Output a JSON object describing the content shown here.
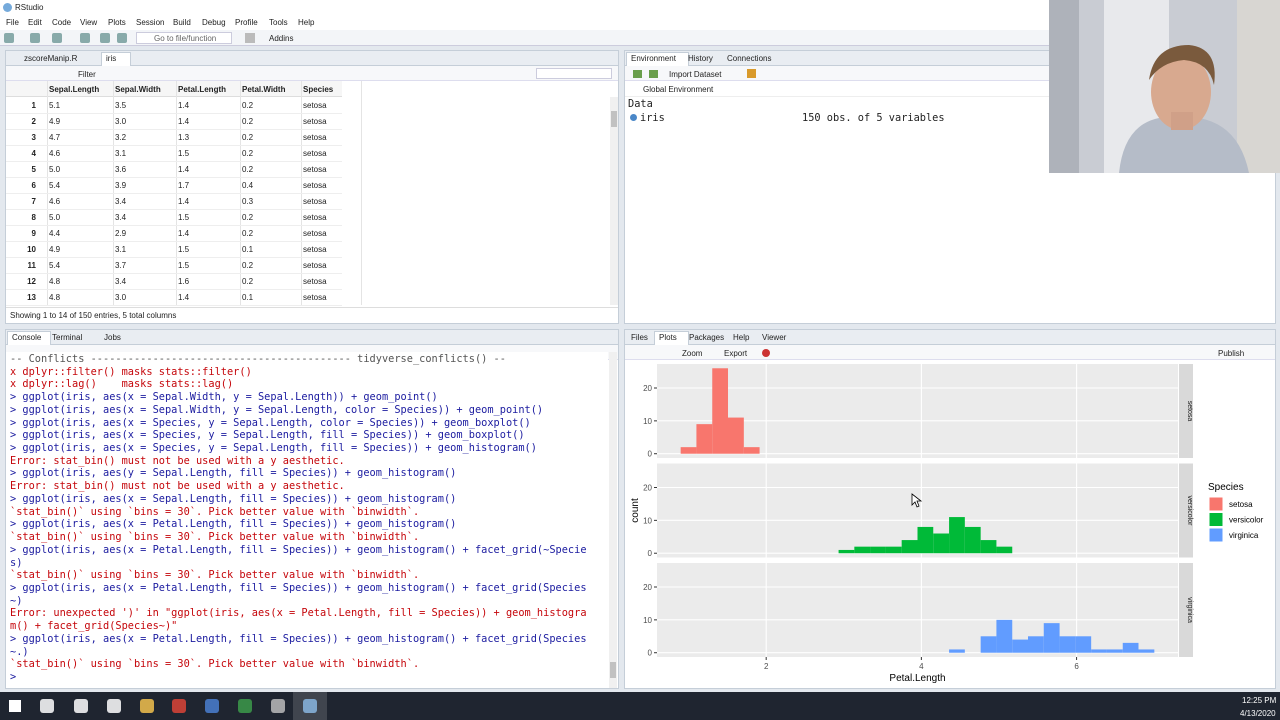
{
  "window": {
    "title": "RStudio"
  },
  "menu": [
    "File",
    "Edit",
    "Code",
    "View",
    "Plots",
    "Session",
    "Build",
    "Debug",
    "Profile",
    "Tools",
    "Help"
  ],
  "toolbar": {
    "goto": "Go to file/function",
    "addins": "Addins"
  },
  "source": {
    "tabs": [
      "zscoreManip.R",
      "iris"
    ],
    "filter": "Filter",
    "columns": [
      "Sepal.Length",
      "Sepal.Width",
      "Petal.Length",
      "Petal.Width",
      "Species"
    ],
    "rows": [
      [
        "1",
        "5.1",
        "3.5",
        "1.4",
        "0.2",
        "setosa"
      ],
      [
        "2",
        "4.9",
        "3.0",
        "1.4",
        "0.2",
        "setosa"
      ],
      [
        "3",
        "4.7",
        "3.2",
        "1.3",
        "0.2",
        "setosa"
      ],
      [
        "4",
        "4.6",
        "3.1",
        "1.5",
        "0.2",
        "setosa"
      ],
      [
        "5",
        "5.0",
        "3.6",
        "1.4",
        "0.2",
        "setosa"
      ],
      [
        "6",
        "5.4",
        "3.9",
        "1.7",
        "0.4",
        "setosa"
      ],
      [
        "7",
        "4.6",
        "3.4",
        "1.4",
        "0.3",
        "setosa"
      ],
      [
        "8",
        "5.0",
        "3.4",
        "1.5",
        "0.2",
        "setosa"
      ],
      [
        "9",
        "4.4",
        "2.9",
        "1.4",
        "0.2",
        "setosa"
      ],
      [
        "10",
        "4.9",
        "3.1",
        "1.5",
        "0.1",
        "setosa"
      ],
      [
        "11",
        "5.4",
        "3.7",
        "1.5",
        "0.2",
        "setosa"
      ],
      [
        "12",
        "4.8",
        "3.4",
        "1.6",
        "0.2",
        "setosa"
      ],
      [
        "13",
        "4.8",
        "3.0",
        "1.4",
        "0.1",
        "setosa"
      ]
    ],
    "footer": "Showing 1 to 14 of 150 entries, 5 total columns"
  },
  "environment": {
    "tabs": [
      "Environment",
      "History",
      "Connections"
    ],
    "import": "Import Dataset",
    "scope": "Global Environment",
    "section": "Data",
    "object": {
      "name": "iris",
      "summary": "150 obs. of 5 variables"
    }
  },
  "console": {
    "tabs": [
      "Console",
      "Terminal",
      "Jobs"
    ],
    "lines": [
      {
        "text": "-- Conflicts ------------------------------------------ tidyverse_conflicts() --",
        "color": "#555555"
      },
      {
        "text": "x dplyr::filter() masks stats::filter()",
        "color": "#c5060b"
      },
      {
        "text": "x dplyr::lag()    masks stats::lag()",
        "color": "#c5060b"
      },
      {
        "text": "> ggplot(iris, aes(x = Sepal.Width, y = Sepal.Length)) + geom_point()",
        "color": "#1c1ca0"
      },
      {
        "text": "> ggplot(iris, aes(x = Sepal.Width, y = Sepal.Length, color = Species)) + geom_point()",
        "color": "#1c1ca0"
      },
      {
        "text": "> ggplot(iris, aes(x = Species, y = Sepal.Length, color = Species)) + geom_boxplot()",
        "color": "#1c1ca0"
      },
      {
        "text": "> ggplot(iris, aes(x = Species, y = Sepal.Length, fill = Species)) + geom_boxplot()",
        "color": "#1c1ca0"
      },
      {
        "text": "> ggplot(iris, aes(x = Species, y = Sepal.Length, fill = Species)) + geom_histogram()",
        "color": "#1c1ca0"
      },
      {
        "text": "Error: stat_bin() must not be used with a y aesthetic.",
        "color": "#c5060b"
      },
      {
        "text": "> ggplot(iris, aes(y = Sepal.Length, fill = Species)) + geom_histogram()",
        "color": "#1c1ca0"
      },
      {
        "text": "Error: stat_bin() must not be used with a y aesthetic.",
        "color": "#c5060b"
      },
      {
        "text": "> ggplot(iris, aes(x = Sepal.Length, fill = Species)) + geom_histogram()",
        "color": "#1c1ca0"
      },
      {
        "text": "`stat_bin()` using `bins = 30`. Pick better value with `binwidth`.",
        "color": "#c5060b"
      },
      {
        "text": "> ggplot(iris, aes(x = Petal.Length, fill = Species)) + geom_histogram()",
        "color": "#1c1ca0"
      },
      {
        "text": "`stat_bin()` using `bins = 30`. Pick better value with `binwidth`.",
        "color": "#c5060b"
      },
      {
        "text": "> ggplot(iris, aes(x = Petal.Length, fill = Species)) + geom_histogram() + facet_grid(~Specie",
        "color": "#1c1ca0"
      },
      {
        "text": "s)",
        "color": "#1c1ca0"
      },
      {
        "text": "`stat_bin()` using `bins = 30`. Pick better value with `binwidth`.",
        "color": "#c5060b"
      },
      {
        "text": "> ggplot(iris, aes(x = Petal.Length, fill = Species)) + geom_histogram() + facet_grid(Species",
        "color": "#1c1ca0"
      },
      {
        "text": "~)",
        "color": "#1c1ca0"
      },
      {
        "text": "Error: unexpected ')' in \"ggplot(iris, aes(x = Petal.Length, fill = Species)) + geom_histogra",
        "color": "#c5060b"
      },
      {
        "text": "m() + facet_grid(Species~)\"",
        "color": "#c5060b"
      },
      {
        "text": "> ggplot(iris, aes(x = Petal.Length, fill = Species)) + geom_histogram() + facet_grid(Species",
        "color": "#1c1ca0"
      },
      {
        "text": "~.)",
        "color": "#1c1ca0"
      },
      {
        "text": "`stat_bin()` using `bins = 30`. Pick better value with `binwidth`.",
        "color": "#c5060b"
      },
      {
        "text": ">",
        "color": "#1c1ca0"
      }
    ]
  },
  "plots_pane": {
    "tabs": [
      "Files",
      "Plots",
      "Packages",
      "Help",
      "Viewer"
    ],
    "zoom": "Zoom",
    "export": "Export",
    "publish": "Publish"
  },
  "chart_data": {
    "type": "histogram",
    "x_label": "Petal.Length",
    "y_label": "count",
    "legend_title": "Species",
    "facets": "rows",
    "bins": [
      0.898,
      1.101,
      1.305,
      1.508,
      1.712,
      1.915,
      2.119,
      2.322,
      2.526,
      2.729,
      2.933,
      3.136,
      3.339,
      3.543,
      3.746,
      3.95,
      4.153,
      4.357,
      4.56,
      4.764,
      4.967,
      5.171,
      5.374,
      5.577,
      5.781,
      5.984,
      6.188,
      6.391,
      6.595,
      6.798,
      7.002
    ],
    "series": [
      {
        "name": "setosa",
        "color": "#f8766d",
        "values": [
          2,
          9,
          26,
          11,
          2,
          0,
          0,
          0,
          0,
          0,
          0,
          0,
          0,
          0,
          0,
          0,
          0,
          0,
          0,
          0,
          0,
          0,
          0,
          0,
          0,
          0,
          0,
          0,
          0,
          0
        ]
      },
      {
        "name": "versicolor",
        "color": "#00ba38",
        "values": [
          0,
          0,
          0,
          0,
          0,
          0,
          0,
          0,
          0,
          0,
          1,
          2,
          2,
          2,
          4,
          8,
          6,
          11,
          8,
          4,
          2,
          0,
          0,
          0,
          0,
          0,
          0,
          0,
          0,
          0
        ]
      },
      {
        "name": "virginica",
        "color": "#619cff",
        "values": [
          0,
          0,
          0,
          0,
          0,
          0,
          0,
          0,
          0,
          0,
          0,
          0,
          0,
          0,
          0,
          0,
          0,
          1,
          0,
          5,
          10,
          4,
          5,
          9,
          5,
          5,
          1,
          1,
          3,
          1
        ]
      }
    ],
    "xlim": [
      0.593,
      7.307
    ],
    "xticks": [
      2,
      4,
      6
    ],
    "ylim": [
      -1.3,
      27.3
    ],
    "yticks": [
      0,
      10,
      20
    ],
    "grid": true
  },
  "taskbar": {
    "time": "12:25 PM",
    "date": "4/13/2020"
  }
}
